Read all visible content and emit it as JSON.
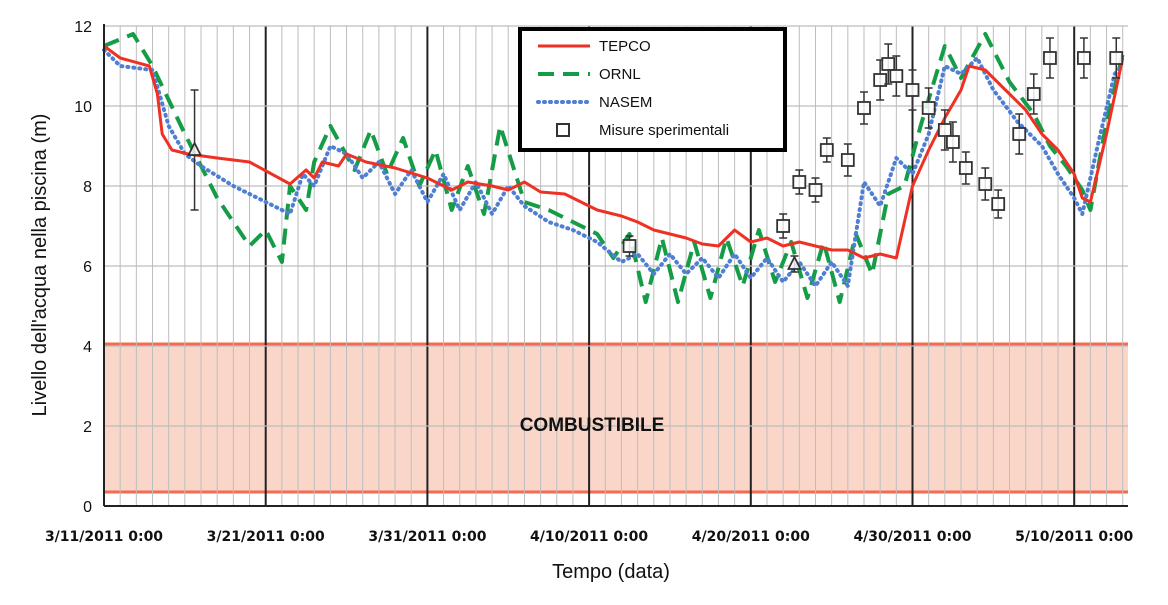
{
  "chart_data": {
    "type": "line",
    "xlabel": "Tempo (data)",
    "ylabel": "Livello dell'acqua nella piscina (m)",
    "x_ticks": [
      "3/11/2011 0:00",
      "3/21/2011 0:00",
      "3/31/2011 0:00",
      "4/10/2011 0:00",
      "4/20/2011 0:00",
      "4/30/2011 0:00",
      "5/10/2011 0:00"
    ],
    "y_ticks": [
      "0",
      "2",
      "4",
      "6",
      "8",
      "10",
      "12"
    ],
    "ylim": [
      0,
      12
    ],
    "x_unit": "days since 3/11/2011 0:00",
    "xlim": [
      0,
      63.3
    ],
    "grid": true,
    "legend_position": "top-right",
    "fuel_band": {
      "label": "COMBUSTIBILE",
      "y_range": [
        0.35,
        4.05
      ],
      "color": "#f9d6c8",
      "line_color": "#f26b52"
    },
    "series": [
      {
        "name": "TEPCO",
        "style": "solid",
        "color": "#ee3124",
        "points": [
          [
            0,
            11.5
          ],
          [
            1,
            11.2
          ],
          [
            2.8,
            11
          ],
          [
            3.3,
            10.3
          ],
          [
            3.6,
            9.3
          ],
          [
            4.2,
            8.9
          ],
          [
            5.2,
            8.8
          ],
          [
            7,
            8.7
          ],
          [
            9,
            8.6
          ],
          [
            11.5,
            8.05
          ],
          [
            12.5,
            8.4
          ],
          [
            13,
            8.2
          ],
          [
            13.5,
            8.6
          ],
          [
            14.5,
            8.5
          ],
          [
            15,
            8.8
          ],
          [
            16.2,
            8.6
          ],
          [
            18,
            8.45
          ],
          [
            20,
            8.2
          ],
          [
            21.5,
            7.9
          ],
          [
            22.5,
            8.1
          ],
          [
            24,
            8
          ],
          [
            25,
            7.9
          ],
          [
            26,
            8.1
          ],
          [
            27,
            7.85
          ],
          [
            28.5,
            7.8
          ],
          [
            30.5,
            7.4
          ],
          [
            32,
            7.25
          ],
          [
            33,
            7.1
          ],
          [
            34,
            6.9
          ],
          [
            36,
            6.7
          ],
          [
            37,
            6.55
          ],
          [
            38,
            6.5
          ],
          [
            39,
            6.9
          ],
          [
            40,
            6.6
          ],
          [
            41,
            6.7
          ],
          [
            42,
            6.5
          ],
          [
            43,
            6.6
          ],
          [
            44,
            6.5
          ],
          [
            45,
            6.4
          ],
          [
            46,
            6.4
          ],
          [
            47,
            6.2
          ],
          [
            48,
            6.3
          ],
          [
            49,
            6.2
          ],
          [
            50,
            8
          ],
          [
            51,
            8.9
          ],
          [
            52,
            9.7
          ],
          [
            53,
            10.4
          ],
          [
            53.5,
            11
          ],
          [
            54.5,
            10.9
          ],
          [
            55.5,
            10.5
          ],
          [
            57,
            9.9
          ],
          [
            58,
            9.3
          ],
          [
            59,
            8.9
          ],
          [
            60,
            8.3
          ],
          [
            60.5,
            7.7
          ],
          [
            61,
            7.6
          ],
          [
            62,
            9.3
          ],
          [
            63,
            11.2
          ]
        ]
      },
      {
        "name": "ORNL",
        "style": "dashed",
        "color": "#159c46",
        "points": [
          [
            0,
            11.5
          ],
          [
            1.8,
            11.8
          ],
          [
            3,
            11
          ],
          [
            5,
            9.3
          ],
          [
            7,
            7.7
          ],
          [
            9,
            6.5
          ],
          [
            10,
            6.9
          ],
          [
            11,
            6.1
          ],
          [
            11.5,
            8
          ],
          [
            12.5,
            7.4
          ],
          [
            13,
            8.6
          ],
          [
            14,
            9.5
          ],
          [
            15.5,
            8.4
          ],
          [
            16.5,
            9.4
          ],
          [
            17.5,
            8.3
          ],
          [
            18.5,
            9.2
          ],
          [
            19.5,
            8
          ],
          [
            20.5,
            8.9
          ],
          [
            21.5,
            7.4
          ],
          [
            22.5,
            8.5
          ],
          [
            23.5,
            7.3
          ],
          [
            24.5,
            9.5
          ],
          [
            26,
            7.6
          ],
          [
            27.5,
            7.4
          ],
          [
            29,
            7.1
          ],
          [
            30.5,
            6.8
          ],
          [
            31.5,
            6.2
          ],
          [
            32.5,
            6.8
          ],
          [
            33.5,
            5.1
          ],
          [
            34.5,
            6.7
          ],
          [
            35.5,
            5.1
          ],
          [
            36.5,
            6.6
          ],
          [
            37.5,
            5.2
          ],
          [
            38.5,
            6.7
          ],
          [
            39.5,
            5.5
          ],
          [
            40.5,
            6.9
          ],
          [
            41.5,
            5.6
          ],
          [
            42.5,
            6.6
          ],
          [
            43.5,
            5.2
          ],
          [
            44.5,
            6.6
          ],
          [
            45.5,
            5.1
          ],
          [
            46.5,
            6.8
          ],
          [
            47.5,
            5.8
          ],
          [
            48.5,
            7.8
          ],
          [
            49.5,
            8
          ],
          [
            50.5,
            9.5
          ],
          [
            52,
            11.5
          ],
          [
            53,
            10.7
          ],
          [
            54.5,
            11.8
          ],
          [
            56,
            10.6
          ],
          [
            57.5,
            9.8
          ],
          [
            58.5,
            9
          ],
          [
            59.5,
            8.5
          ],
          [
            60.5,
            7.9
          ],
          [
            61,
            7.4
          ],
          [
            62,
            9.6
          ],
          [
            63,
            11.3
          ]
        ]
      },
      {
        "name": "NASEM",
        "style": "dotted",
        "color": "#4f7fd2",
        "points": [
          [
            0,
            11.4
          ],
          [
            1,
            11
          ],
          [
            3,
            10.9
          ],
          [
            4,
            9.5
          ],
          [
            5,
            8.8
          ],
          [
            6,
            8.5
          ],
          [
            8,
            8
          ],
          [
            10,
            7.6
          ],
          [
            11.5,
            7.3
          ],
          [
            12.3,
            8.3
          ],
          [
            13,
            8
          ],
          [
            14,
            9
          ],
          [
            15,
            8.8
          ],
          [
            16,
            8.2
          ],
          [
            17,
            8.6
          ],
          [
            18,
            7.8
          ],
          [
            19,
            8.4
          ],
          [
            20,
            7.6
          ],
          [
            21,
            8.3
          ],
          [
            22,
            7.4
          ],
          [
            23,
            8.1
          ],
          [
            24,
            7.3
          ],
          [
            25,
            8
          ],
          [
            26,
            7.5
          ],
          [
            27.5,
            7.1
          ],
          [
            29,
            6.9
          ],
          [
            30.5,
            6.6
          ],
          [
            32,
            6.1
          ],
          [
            33,
            6.3
          ],
          [
            34,
            5.8
          ],
          [
            35,
            6.3
          ],
          [
            36,
            5.8
          ],
          [
            37,
            6.2
          ],
          [
            38,
            5.7
          ],
          [
            39,
            6.3
          ],
          [
            40,
            5.7
          ],
          [
            41,
            6.2
          ],
          [
            42,
            5.6
          ],
          [
            43,
            6.1
          ],
          [
            44,
            5.5
          ],
          [
            45,
            6.1
          ],
          [
            46,
            5.5
          ],
          [
            47,
            8.1
          ],
          [
            48,
            7.5
          ],
          [
            49,
            8.7
          ],
          [
            50,
            8.3
          ],
          [
            51,
            9.3
          ],
          [
            52,
            11
          ],
          [
            53,
            10.8
          ],
          [
            54,
            11.2
          ],
          [
            55,
            10.4
          ],
          [
            56.5,
            9.6
          ],
          [
            58,
            9
          ],
          [
            59,
            8.3
          ],
          [
            60,
            7.7
          ],
          [
            60.5,
            7.3
          ],
          [
            61.5,
            9.1
          ],
          [
            62.5,
            10.8
          ],
          [
            63,
            11
          ]
        ]
      }
    ],
    "measurements": {
      "name": "Misure sperimentali",
      "points": [
        {
          "x": 32.5,
          "y": 6.5,
          "err": 0.25
        },
        {
          "x": 42,
          "y": 7,
          "err": 0.3
        },
        {
          "x": 43,
          "y": 8.1,
          "err": 0.3
        },
        {
          "x": 44,
          "y": 7.9,
          "err": 0.3
        },
        {
          "x": 44.7,
          "y": 8.9,
          "err": 0.3
        },
        {
          "x": 46,
          "y": 8.65,
          "err": 0.4
        },
        {
          "x": 47,
          "y": 9.95,
          "err": 0.4
        },
        {
          "x": 48,
          "y": 10.65,
          "err": 0.5
        },
        {
          "x": 48.5,
          "y": 11.05,
          "err": 0.5
        },
        {
          "x": 49,
          "y": 10.75,
          "err": 0.5
        },
        {
          "x": 50,
          "y": 10.4,
          "err": 0.5
        },
        {
          "x": 51,
          "y": 9.95,
          "err": 0.5
        },
        {
          "x": 52,
          "y": 9.4,
          "err": 0.5
        },
        {
          "x": 52.5,
          "y": 9.1,
          "err": 0.5
        },
        {
          "x": 53.3,
          "y": 8.45,
          "err": 0.4
        },
        {
          "x": 54.5,
          "y": 8.05,
          "err": 0.4
        },
        {
          "x": 55.3,
          "y": 7.55,
          "err": 0.35
        },
        {
          "x": 56.6,
          "y": 9.3,
          "err": 0.5
        },
        {
          "x": 57.5,
          "y": 10.3,
          "err": 0.5
        },
        {
          "x": 58.5,
          "y": 11.2,
          "err": 0.5
        },
        {
          "x": 60.6,
          "y": 11.2,
          "err": 0.5
        },
        {
          "x": 62.6,
          "y": 11.2,
          "err": 0.5
        }
      ]
    },
    "triangle_markers": [
      {
        "x": 5.6,
        "y": 8.9,
        "err": 1.5
      },
      {
        "x": 42.7,
        "y": 6.05,
        "err": 0.2
      }
    ]
  },
  "legend": [
    {
      "label": "TEPCO",
      "style": "solid",
      "color": "#ee3124"
    },
    {
      "label": "ORNL",
      "style": "dashed",
      "color": "#159c46"
    },
    {
      "label": "NASEM",
      "style": "dotted",
      "color": "#4f7fd2"
    },
    {
      "label": "Misure sperimentali",
      "style": "square",
      "color": "#333333"
    }
  ]
}
